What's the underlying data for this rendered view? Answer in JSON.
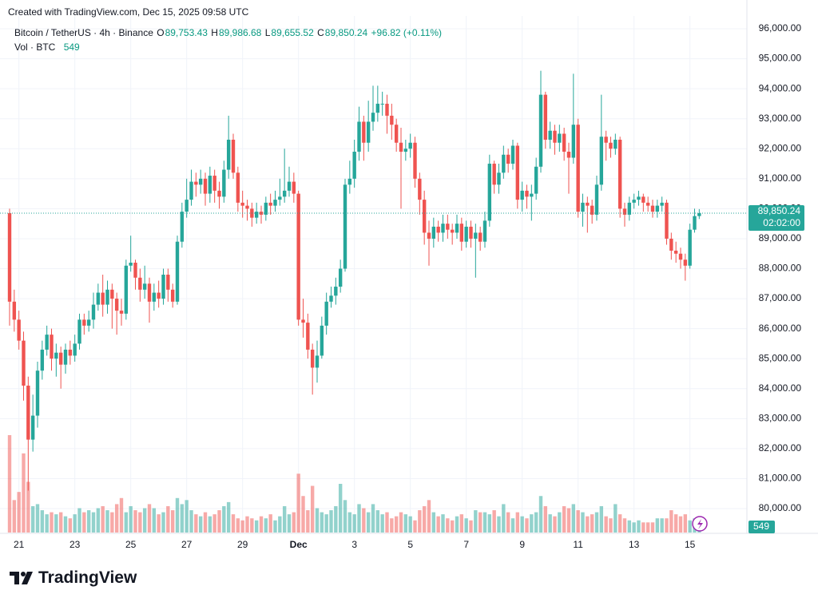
{
  "header": {
    "created": "Created with TradingView.com, Dec 15, 2025 09:58 UTC"
  },
  "chart_data": {
    "type": "candlestick",
    "title": "Bitcoin / TetherUS · 4h · Binance",
    "legend": {
      "open_label": "O",
      "open": "89,753.43",
      "high_label": "H",
      "high": "89,986.68",
      "low_label": "L",
      "low": "89,655.52",
      "close_label": "C",
      "close": "89,850.24",
      "change": "+96.82 (+0.11%)",
      "volume_title": "Vol · BTC",
      "volume": "549"
    },
    "categories": [
      null,
      null,
      "21",
      null,
      null,
      null,
      null,
      null,
      null,
      null,
      null,
      null,
      null,
      null,
      "23",
      null,
      null,
      null,
      null,
      null,
      null,
      null,
      null,
      null,
      null,
      null,
      "25",
      null,
      null,
      null,
      null,
      null,
      null,
      null,
      null,
      null,
      null,
      null,
      "27",
      null,
      null,
      null,
      null,
      null,
      null,
      null,
      null,
      null,
      null,
      null,
      "29",
      null,
      null,
      null,
      null,
      null,
      null,
      null,
      null,
      null,
      null,
      null,
      "Dec",
      null,
      null,
      null,
      null,
      null,
      null,
      null,
      null,
      null,
      null,
      null,
      "3",
      null,
      null,
      null,
      null,
      null,
      null,
      null,
      null,
      null,
      null,
      null,
      "5",
      null,
      null,
      null,
      null,
      null,
      null,
      null,
      null,
      null,
      null,
      null,
      "7",
      null,
      null,
      null,
      null,
      null,
      null,
      null,
      null,
      null,
      null,
      null,
      "9",
      null,
      null,
      null,
      null,
      null,
      null,
      null,
      null,
      null,
      null,
      null,
      "11",
      null,
      null,
      null,
      null,
      null,
      null,
      null,
      null,
      null,
      null,
      null,
      "13",
      null,
      null,
      null,
      null,
      null,
      null,
      null,
      null,
      null,
      null,
      null,
      "15",
      null,
      null
    ],
    "open": [
      89850,
      86900,
      86300,
      85600,
      84100,
      82300,
      83100,
      84600,
      85300,
      85800,
      85000,
      85200,
      84800,
      85300,
      85100,
      85500,
      86300,
      86100,
      86300,
      86800,
      87200,
      86800,
      87300,
      87000,
      86600,
      86500,
      88100,
      88200,
      87700,
      87300,
      87500,
      86900,
      87200,
      87000,
      87800,
      87300,
      86900,
      88900,
      89900,
      90300,
      90900,
      90800,
      91000,
      90500,
      91100,
      90600,
      90400,
      91300,
      92300,
      91200,
      90200,
      90100,
      90000,
      89700,
      89900,
      89800,
      90200,
      90100,
      90300,
      90400,
      90600,
      90900,
      90500,
      86300,
      86200,
      85300,
      84700,
      85100,
      86100,
      86900,
      87100,
      87400,
      88000,
      90800,
      91000,
      91900,
      92900,
      92200,
      92900,
      93200,
      93500,
      93500,
      93100,
      92800,
      92200,
      91900,
      92000,
      92200,
      91000,
      90300,
      89200,
      89000,
      89400,
      89200,
      89500,
      89300,
      89200,
      89500,
      88900,
      89400,
      89000,
      89200,
      88900,
      89600,
      91500,
      90800,
      91200,
      91800,
      91500,
      92100,
      90300,
      90600,
      90400,
      90500,
      91400,
      93800,
      92300,
      92600,
      92200,
      92500,
      91900,
      91700,
      92800,
      89900,
      90200,
      90100,
      89800,
      90800,
      92400,
      92200,
      92000,
      92300,
      90000,
      89800,
      90200,
      90300,
      90400,
      90200,
      90100,
      89900,
      90100,
      90200,
      89000,
      88600,
      88500,
      88300,
      88100,
      89300,
      89753.43
    ],
    "high": [
      90000,
      87300,
      86600,
      85900,
      84400,
      83800,
      84900,
      85600,
      86100,
      86000,
      85500,
      85400,
      85500,
      85600,
      85800,
      86500,
      86500,
      86600,
      87200,
      87500,
      87800,
      87600,
      87500,
      87200,
      87000,
      88300,
      89100,
      88300,
      88000,
      88100,
      87700,
      87500,
      87600,
      88000,
      88000,
      87500,
      89100,
      90200,
      91000,
      91300,
      91200,
      91300,
      91200,
      91400,
      91300,
      90900,
      91600,
      93100,
      92500,
      91400,
      90600,
      90300,
      90200,
      90200,
      90100,
      90400,
      90500,
      90600,
      91000,
      92000,
      91400,
      91200,
      90600,
      87000,
      86500,
      85500,
      85600,
      86400,
      87200,
      87400,
      87700,
      88300,
      91000,
      91600,
      92300,
      93400,
      93100,
      93600,
      94100,
      94100,
      93900,
      93800,
      93500,
      93000,
      92700,
      92300,
      92500,
      92400,
      91200,
      90600,
      89600,
      89700,
      89600,
      89800,
      89800,
      89500,
      89800,
      89700,
      89600,
      89600,
      89500,
      89400,
      89900,
      91800,
      91600,
      91500,
      92100,
      92000,
      92300,
      92200,
      90900,
      90800,
      90800,
      91700,
      94600,
      93900,
      92900,
      92800,
      92800,
      92700,
      92200,
      94500,
      93000,
      90500,
      90400,
      90300,
      91100,
      93800,
      92600,
      92400,
      92500,
      92400,
      90200,
      90400,
      90500,
      90600,
      90500,
      90400,
      90300,
      90300,
      90400,
      90300,
      89200,
      88900,
      88700,
      88500,
      89500,
      90000,
      89986.68
    ],
    "low": [
      86100,
      85900,
      85300,
      83600,
      80600,
      81900,
      82700,
      84300,
      85100,
      84600,
      84400,
      84000,
      84500,
      84800,
      84900,
      85300,
      85800,
      85900,
      86000,
      86600,
      86400,
      86500,
      86000,
      85800,
      86100,
      86300,
      87900,
      87300,
      86900,
      87000,
      86200,
      86600,
      86700,
      86800,
      86900,
      86700,
      86800,
      88700,
      89700,
      90100,
      90400,
      90500,
      90100,
      90200,
      90200,
      90000,
      90200,
      91000,
      91000,
      89900,
      89700,
      89600,
      89400,
      89500,
      89500,
      89600,
      89800,
      89900,
      90100,
      90200,
      90400,
      90200,
      86100,
      85700,
      85000,
      83800,
      84200,
      85000,
      85800,
      86700,
      86800,
      87200,
      87900,
      90500,
      90700,
      91600,
      91600,
      91900,
      92600,
      92900,
      93100,
      92500,
      92300,
      91900,
      90000,
      91600,
      91700,
      90700,
      89800,
      88800,
      88100,
      88700,
      88900,
      88900,
      89000,
      88800,
      89000,
      88600,
      88700,
      88700,
      87700,
      88600,
      88700,
      89400,
      90500,
      90500,
      91000,
      91200,
      91300,
      90000,
      89900,
      90000,
      89600,
      90300,
      91200,
      92000,
      92000,
      91800,
      91900,
      91600,
      90500,
      91500,
      89700,
      89400,
      89200,
      89500,
      89600,
      90600,
      91600,
      91700,
      91800,
      89700,
      89400,
      89600,
      90000,
      90100,
      89900,
      89900,
      89700,
      89700,
      89900,
      88800,
      88300,
      88200,
      88000,
      87600,
      88000,
      89200,
      89655.52
    ],
    "close": [
      86900,
      86300,
      85600,
      84100,
      82300,
      83100,
      84600,
      85300,
      85800,
      85000,
      85200,
      84800,
      85300,
      85100,
      85500,
      86300,
      86100,
      86300,
      86800,
      87200,
      86800,
      87300,
      87000,
      86600,
      86500,
      88100,
      88200,
      87700,
      87300,
      87500,
      86900,
      87200,
      87000,
      87800,
      87300,
      86900,
      88900,
      89900,
      90300,
      90900,
      90800,
      91000,
      90500,
      91100,
      90600,
      90400,
      91300,
      92300,
      91200,
      90200,
      90100,
      90000,
      89700,
      89900,
      89800,
      90200,
      90100,
      90300,
      90400,
      90600,
      90900,
      90500,
      86300,
      86200,
      85300,
      84700,
      85100,
      86100,
      86900,
      87100,
      87400,
      88000,
      90800,
      91000,
      91900,
      92900,
      92200,
      92900,
      93200,
      93500,
      93500,
      93100,
      92800,
      92200,
      91900,
      92000,
      92200,
      91000,
      90300,
      89200,
      89000,
      89400,
      89200,
      89500,
      89300,
      89200,
      89500,
      88900,
      89400,
      89000,
      89200,
      88900,
      89600,
      91500,
      90800,
      91200,
      91800,
      91500,
      92100,
      90300,
      90600,
      90400,
      90500,
      91400,
      93800,
      92300,
      92600,
      92200,
      92500,
      91900,
      91700,
      92800,
      89900,
      90200,
      90100,
      89800,
      90800,
      92400,
      92200,
      92000,
      92300,
      90000,
      89800,
      90200,
      90300,
      90400,
      90200,
      90100,
      89900,
      90100,
      90200,
      89000,
      88600,
      88500,
      88300,
      88100,
      89300,
      89753.43,
      89850.24
    ],
    "volume": [
      4800,
      1600,
      2000,
      3900,
      2500,
      1300,
      1400,
      1100,
      900,
      1000,
      900,
      1000,
      800,
      700,
      900,
      1200,
      1000,
      1100,
      1000,
      1200,
      1300,
      1100,
      1000,
      1400,
      1700,
      1000,
      1300,
      1100,
      1000,
      1200,
      1400,
      1200,
      900,
      1000,
      1300,
      1100,
      1700,
      1400,
      1600,
      1100,
      900,
      800,
      1000,
      800,
      900,
      1100,
      1300,
      1500,
      900,
      700,
      600,
      800,
      700,
      600,
      800,
      700,
      900,
      600,
      800,
      1300,
      900,
      1000,
      2900,
      1800,
      1100,
      2300,
      1200,
      1000,
      900,
      1100,
      1300,
      2400,
      1600,
      1000,
      900,
      1400,
      1200,
      1000,
      1400,
      1100,
      900,
      1000,
      700,
      800,
      1000,
      900,
      800,
      600,
      1100,
      1300,
      1600,
      1000,
      800,
      900,
      700,
      600,
      800,
      900,
      700,
      600,
      1100,
      1000,
      1000,
      900,
      1100,
      800,
      1400,
      1000,
      700,
      1000,
      800,
      700,
      900,
      1000,
      1800,
      1300,
      900,
      800,
      1000,
      1300,
      1200,
      1400,
      1100,
      1000,
      800,
      900,
      1000,
      1300,
      800,
      700,
      1400,
      900,
      700,
      600,
      500,
      600,
      500,
      500,
      500,
      700,
      700,
      700,
      1100,
      900,
      800,
      900,
      600,
      700,
      549
    ],
    "up_color": "#26a69a",
    "down_color": "#ef5350",
    "ylim": [
      79175,
      96426
    ],
    "yticks": [
      {
        "value": 80000,
        "label": "80,000.00"
      },
      {
        "value": 81000,
        "label": "81,000.00"
      },
      {
        "value": 82000,
        "label": "82,000.00"
      },
      {
        "value": 83000,
        "label": "83,000.00"
      },
      {
        "value": 84000,
        "label": "84,000.00"
      },
      {
        "value": 85000,
        "label": "85,000.00"
      },
      {
        "value": 86000,
        "label": "86,000.00"
      },
      {
        "value": 87000,
        "label": "87,000.00"
      },
      {
        "value": 88000,
        "label": "88,000.00"
      },
      {
        "value": 89000,
        "label": "89,000.00"
      },
      {
        "value": 90000,
        "label": "90,000.00"
      },
      {
        "value": 91000,
        "label": "91,000.00"
      },
      {
        "value": 92000,
        "label": "92,000.00"
      },
      {
        "value": 93000,
        "label": "93,000.00"
      },
      {
        "value": 94000,
        "label": "94,000.00"
      },
      {
        "value": 95000,
        "label": "95,000.00"
      },
      {
        "value": 96000,
        "label": "96,000.00"
      }
    ],
    "grid": true,
    "last_price_label": "89,850.24",
    "countdown": "02:02:00"
  },
  "footer": {
    "logo": "TradingView"
  }
}
